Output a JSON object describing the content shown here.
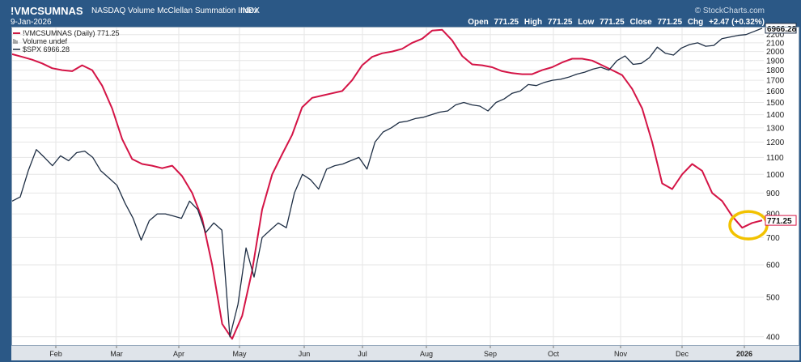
{
  "header": {
    "symbol": "!VMCSUMNAS",
    "name": "NASDAQ Volume McClellan Summation Index",
    "exchange": "INDX",
    "date": "9-Jan-2026",
    "watermark": "© StockCharts.com",
    "open_label": "Open",
    "open": "771.25",
    "high_label": "High",
    "high": "771.25",
    "low_label": "Low",
    "low": "771.25",
    "close_label": "Close",
    "close": "771.25",
    "chg_label": "Chg",
    "chg": "+2.47 (+0.32%)"
  },
  "legend": [
    {
      "text": "!VMCSUMNAS (Daily) 771.25",
      "color": "#cc1a44"
    },
    {
      "text": "Volume undef",
      "color": "#555555"
    },
    {
      "text": "$SPX 6966.28",
      "color": "#1a2a3e"
    }
  ],
  "colors": {
    "summation": "#d41446",
    "spx": "#1e2e44",
    "highlight": "#f2c200",
    "frame": "#2b5886"
  },
  "chart_data": {
    "type": "line",
    "x_labels": [
      "Feb",
      "Mar",
      "Apr",
      "May",
      "Jun",
      "Jul",
      "Aug",
      "Sep",
      "Oct",
      "Nov",
      "Dec",
      "2026"
    ],
    "y_ticks": [
      "2200",
      "2100",
      "2000",
      "1900",
      "1800",
      "1700",
      "1600",
      "1500",
      "1400",
      "1300",
      "1200",
      "1100",
      "1000",
      "900",
      "800",
      "700",
      "600",
      "500",
      "400"
    ],
    "y_scale": "log",
    "ylim": [
      380,
      2300
    ],
    "grid": true,
    "last_value_labels": {
      "spx": "6966.28",
      "summation": "771.25"
    },
    "annotation": "circle around latest summation reading",
    "series": [
      {
        "name": "!VMCSUMNAS (Daily)",
        "color": "#d41446",
        "values": [
          1970,
          1940,
          1910,
          1870,
          1820,
          1800,
          1790,
          1850,
          1800,
          1650,
          1450,
          1220,
          1090,
          1060,
          1050,
          1035,
          1050,
          990,
          900,
          780,
          600,
          430,
          395,
          450,
          580,
          820,
          1000,
          1120,
          1250,
          1460,
          1540,
          1560,
          1580,
          1600,
          1700,
          1850,
          1940,
          1980,
          2000,
          2030,
          2100,
          2150,
          2250,
          2260,
          2130,
          1950,
          1860,
          1850,
          1830,
          1790,
          1770,
          1760,
          1760,
          1800,
          1830,
          1880,
          1920,
          1920,
          1900,
          1850,
          1800,
          1750,
          1620,
          1450,
          1200,
          950,
          920,
          1000,
          1060,
          1020,
          900,
          860,
          790,
          740,
          760,
          771.25
        ]
      },
      {
        "name": "$SPX",
        "color": "#1e2e44",
        "values": [
          860,
          880,
          1020,
          1150,
          1100,
          1050,
          1110,
          1080,
          1130,
          1140,
          1100,
          1020,
          980,
          940,
          850,
          780,
          690,
          770,
          800,
          800,
          790,
          780,
          860,
          820,
          720,
          760,
          730,
          400,
          480,
          660,
          560,
          700,
          730,
          760,
          740,
          900,
          1000,
          970,
          920,
          1030,
          1050,
          1060,
          1080,
          1100,
          1030,
          1200,
          1270,
          1300,
          1340,
          1350,
          1370,
          1380,
          1400,
          1420,
          1430,
          1480,
          1500,
          1480,
          1470,
          1430,
          1500,
          1530,
          1580,
          1600,
          1660,
          1650,
          1680,
          1700,
          1710,
          1730,
          1760,
          1780,
          1810,
          1830,
          1800,
          1900,
          1950,
          1860,
          1870,
          1930,
          2050,
          1980,
          1960,
          2040,
          2080,
          2100,
          2060,
          2070,
          2150,
          2170,
          2190,
          2200,
          2240,
          2280
        ]
      }
    ]
  }
}
